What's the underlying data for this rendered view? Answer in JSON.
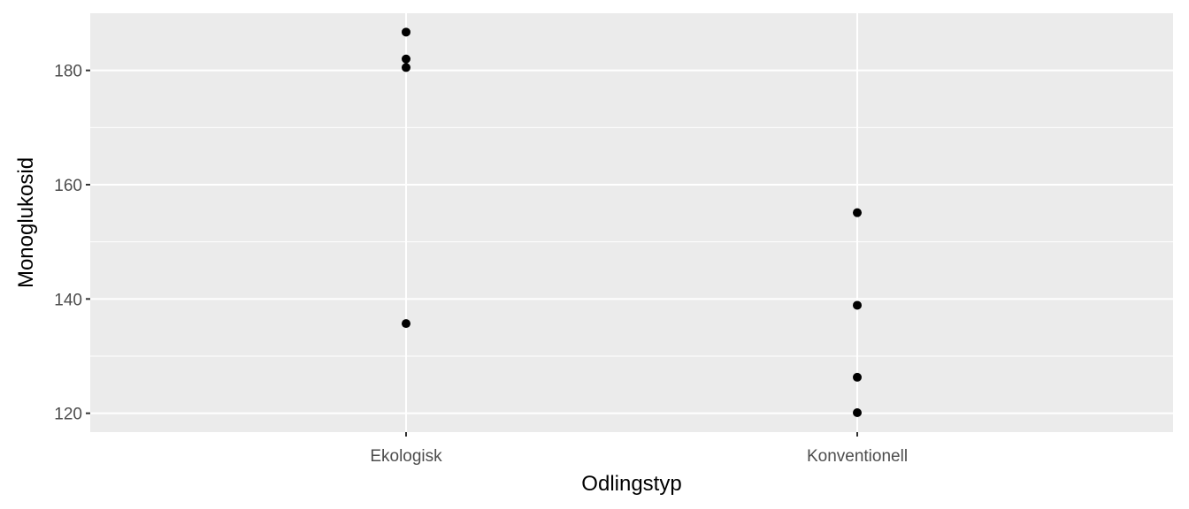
{
  "chart_data": {
    "type": "scatter",
    "title": "",
    "xlabel": "Odlingstyp",
    "ylabel": "Monoglukosid",
    "categories": [
      "Ekologisk",
      "Konventionell"
    ],
    "ylim": [
      116.7,
      190.0
    ],
    "yticks": [
      120,
      140,
      160,
      180
    ],
    "grid": true,
    "legend": "none",
    "points": [
      {
        "x": "Ekologisk",
        "y": 186.7
      },
      {
        "x": "Ekologisk",
        "y": 182.0
      },
      {
        "x": "Ekologisk",
        "y": 180.5
      },
      {
        "x": "Ekologisk",
        "y": 135.7
      },
      {
        "x": "Konventionell",
        "y": 155.1
      },
      {
        "x": "Konventionell",
        "y": 138.9
      },
      {
        "x": "Konventionell",
        "y": 126.3
      },
      {
        "x": "Konventionell",
        "y": 120.1
      }
    ],
    "colors": {
      "panel": "#ebebeb",
      "grid": "#ffffff",
      "point": "#000000"
    }
  }
}
